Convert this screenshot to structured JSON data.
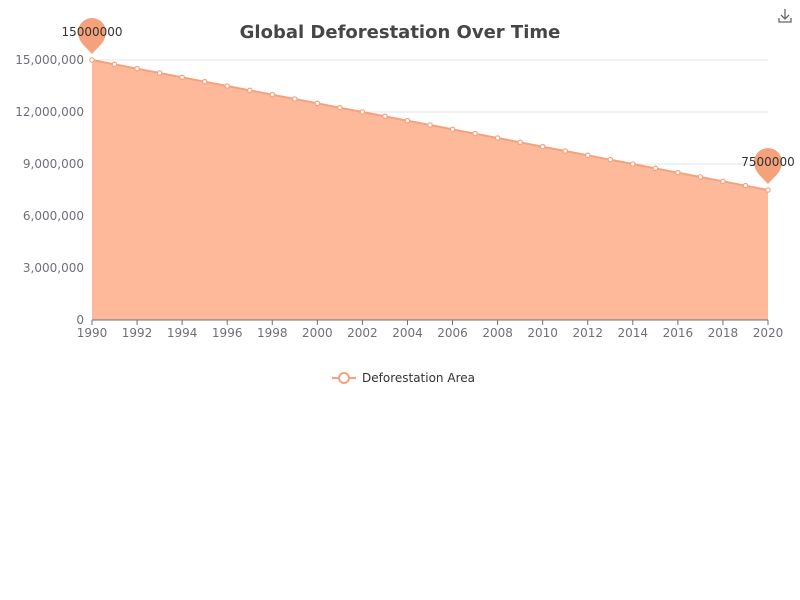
{
  "colors": {
    "series": "#f4a27c",
    "area": "#fdb99a",
    "grid": "#e0e6f1",
    "axis": "#6e7079",
    "title": "#464646",
    "toolbox": "#666666"
  },
  "toolbox": {
    "icon": "download-icon"
  },
  "chart_data": {
    "type": "area",
    "title": "Global Deforestation Over Time",
    "xlabel": "",
    "ylabel": "",
    "x": [
      1990,
      1991,
      1992,
      1993,
      1994,
      1995,
      1996,
      1997,
      1998,
      1999,
      2000,
      2001,
      2002,
      2003,
      2004,
      2005,
      2006,
      2007,
      2008,
      2009,
      2010,
      2011,
      2012,
      2013,
      2014,
      2015,
      2016,
      2017,
      2018,
      2019,
      2020
    ],
    "x_tick_labels": [
      "1990",
      "1992",
      "1994",
      "1996",
      "1998",
      "2000",
      "2002",
      "2004",
      "2006",
      "2008",
      "2010",
      "2012",
      "2014",
      "2016",
      "2018",
      "2020"
    ],
    "y_tick_labels": [
      "0",
      "3,000,000",
      "6,000,000",
      "9,000,000",
      "12,000,000",
      "15,000,000"
    ],
    "y_ticks": [
      0,
      3000000,
      6000000,
      9000000,
      12000000,
      15000000
    ],
    "ylim": [
      0,
      15000000
    ],
    "xlim": [
      1990,
      2020
    ],
    "grid": true,
    "legend_position": "bottom-center",
    "series": [
      {
        "name": "Deforestation Area",
        "values": [
          15000000,
          14750000,
          14500000,
          14250000,
          14000000,
          13750000,
          13500000,
          13250000,
          13000000,
          12750000,
          12500000,
          12250000,
          12000000,
          11750000,
          11500000,
          11250000,
          11000000,
          10750000,
          10500000,
          10250000,
          10000000,
          9750000,
          9500000,
          9250000,
          9000000,
          8750000,
          8500000,
          8250000,
          8000000,
          7750000,
          7500000
        ]
      }
    ],
    "mark_points": [
      {
        "type": "max",
        "x": 1990,
        "value": 15000000,
        "label": "15000000"
      },
      {
        "type": "min",
        "x": 2020,
        "value": 7500000,
        "label": "7500000"
      }
    ]
  }
}
